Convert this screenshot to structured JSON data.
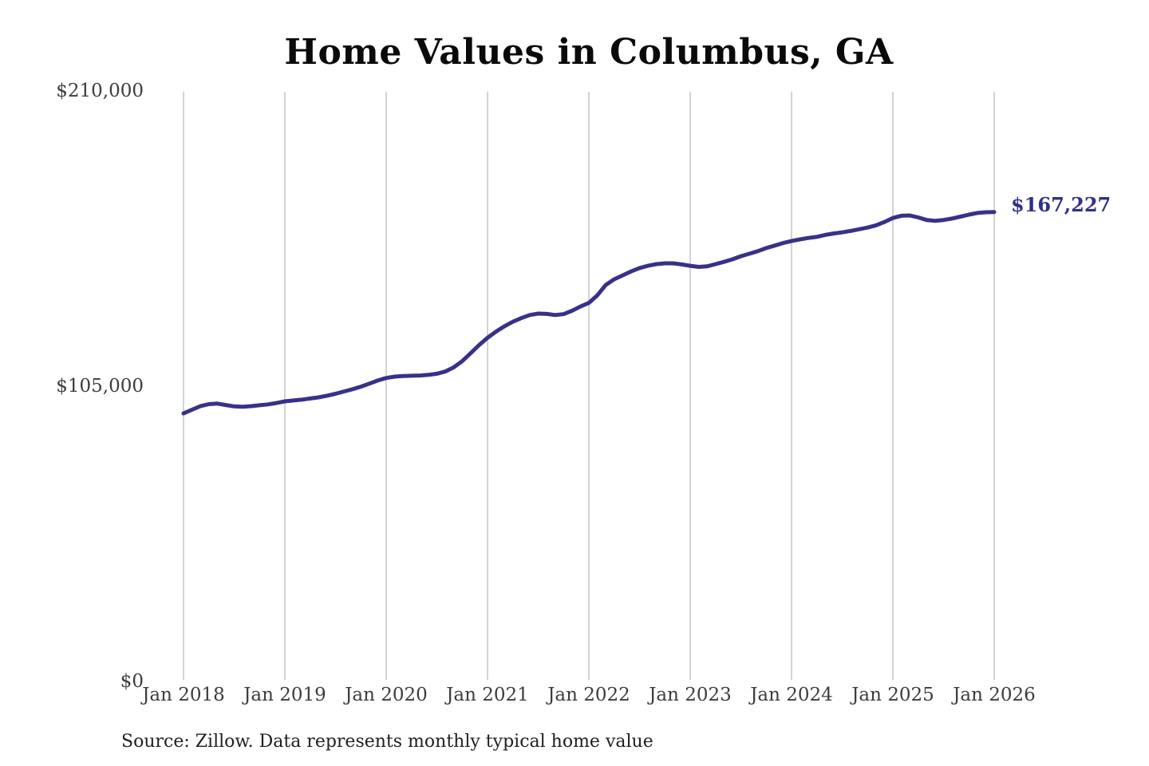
{
  "chart": {
    "title": "Home Values in Columbus, GA",
    "source_note": "Source: Zillow. Data represents monthly typical home value",
    "current_value_label": "$167,227"
  },
  "chart_data": {
    "type": "line",
    "title": "Home Values in Columbus, GA",
    "xlabel": "",
    "ylabel": "",
    "ylim": [
      0,
      210000
    ],
    "grid": "vertical-only",
    "legend": "none",
    "x_tick_labels": [
      "Jan 2018",
      "Jan 2019",
      "Jan 2020",
      "Jan 2021",
      "Jan 2022",
      "Jan 2023",
      "Jan 2024",
      "Jan 2025",
      "Jan 2026"
    ],
    "y_ticks": [
      {
        "label": "$0",
        "value": 0
      },
      {
        "label": "$105,000",
        "value": 105000
      },
      {
        "label": "$210,000",
        "value": 210000
      }
    ],
    "end_label": "$167,227",
    "end_value": 167227,
    "series": [
      {
        "name": "Monthly typical home value",
        "frequency": "monthly",
        "start": "Jan 2018",
        "end": "Jan 2026",
        "values": [
          95600,
          96900,
          98200,
          98900,
          99100,
          98600,
          98100,
          98000,
          98200,
          98500,
          98800,
          99300,
          99900,
          100200,
          100500,
          100900,
          101300,
          101900,
          102600,
          103400,
          104200,
          105100,
          106200,
          107300,
          108200,
          108700,
          108900,
          109000,
          109100,
          109300,
          109700,
          110500,
          112000,
          114200,
          117000,
          119900,
          122500,
          124700,
          126600,
          128200,
          129500,
          130600,
          131100,
          131000,
          130600,
          130900,
          132100,
          133600,
          134900,
          137600,
          141300,
          143300,
          144700,
          146100,
          147300,
          148100,
          148700,
          149000,
          149000,
          148600,
          148100,
          147700,
          147900,
          148700,
          149500,
          150400,
          151500,
          152400,
          153300,
          154400,
          155300,
          156200,
          156900,
          157500,
          158000,
          158400,
          159100,
          159600,
          160000,
          160500,
          161100,
          161700,
          162500,
          163700,
          165100,
          165900,
          166000,
          165300,
          164400,
          164100,
          164400,
          164900,
          165600,
          166300,
          166900,
          167150,
          167227
        ]
      }
    ],
    "colors": {
      "line": "#38318a",
      "end_label": "#30308a",
      "gridline": "#c8c8c8",
      "title": "#0a0a0a",
      "axis_text": "#3d3d3d",
      "source_text": "#1f1f1f",
      "background": "#ffffff"
    }
  }
}
